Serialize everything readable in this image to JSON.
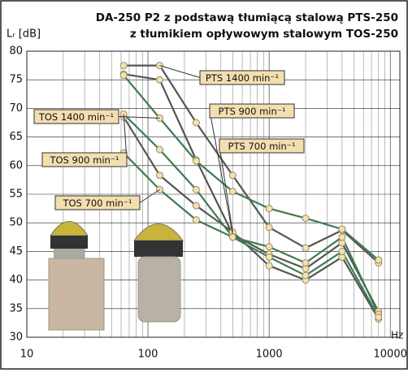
{
  "chart_data": {
    "type": "line",
    "title": "DA-250 P2 z podstawą tłumiącą stalową PTS-250",
    "subtitle": "z tłumikiem opływowym stalowym TOS-250",
    "y_label": "Lᵣ [dB]",
    "x_label": "Hz",
    "x": [
      63,
      125,
      250,
      500,
      1000,
      2000,
      4000,
      8000
    ],
    "log_x": true,
    "grid": true,
    "xlim": [
      10,
      12000
    ],
    "xticks": [
      10,
      100,
      1000,
      10000
    ],
    "ylim": [
      30,
      80
    ],
    "yticks": [
      30,
      35,
      40,
      45,
      50,
      55,
      60,
      65,
      70,
      75,
      80
    ],
    "series": [
      {
        "name": "PTS 1400 min⁻¹",
        "color": "#555555",
        "values": [
          77.5,
          77.5,
          67.5,
          58.3,
          49.2,
          45.6,
          48.7,
          43.0
        ]
      },
      {
        "name": "PTS 900 min⁻¹",
        "color": "#555555",
        "values": [
          76.0,
          75.0,
          61.0,
          48.0,
          44.5,
          42.0,
          46.5,
          34.5
        ]
      },
      {
        "name": "PTS 700 min⁻¹",
        "color": "#555555",
        "values": [
          68.5,
          58.3,
          53.0,
          48.4,
          42.5,
          40.0,
          44.0,
          33.2
        ]
      },
      {
        "name": "TOS 1400 min⁻¹",
        "color": "#3f7a52",
        "values": [
          75.8,
          68.3,
          60.8,
          55.5,
          52.5,
          50.8,
          48.9,
          43.5
        ]
      },
      {
        "name": "TOS 900 min⁻¹",
        "color": "#3f7a52",
        "values": [
          69.0,
          62.8,
          55.8,
          47.5,
          45.8,
          43.0,
          47.5,
          34.0
        ]
      },
      {
        "name": "TOS 700 min⁻¹",
        "color": "#3f7a52",
        "values": [
          62.2,
          55.8,
          50.5,
          47.5,
          44.0,
          40.8,
          45.0,
          33.5
        ]
      }
    ]
  }
}
